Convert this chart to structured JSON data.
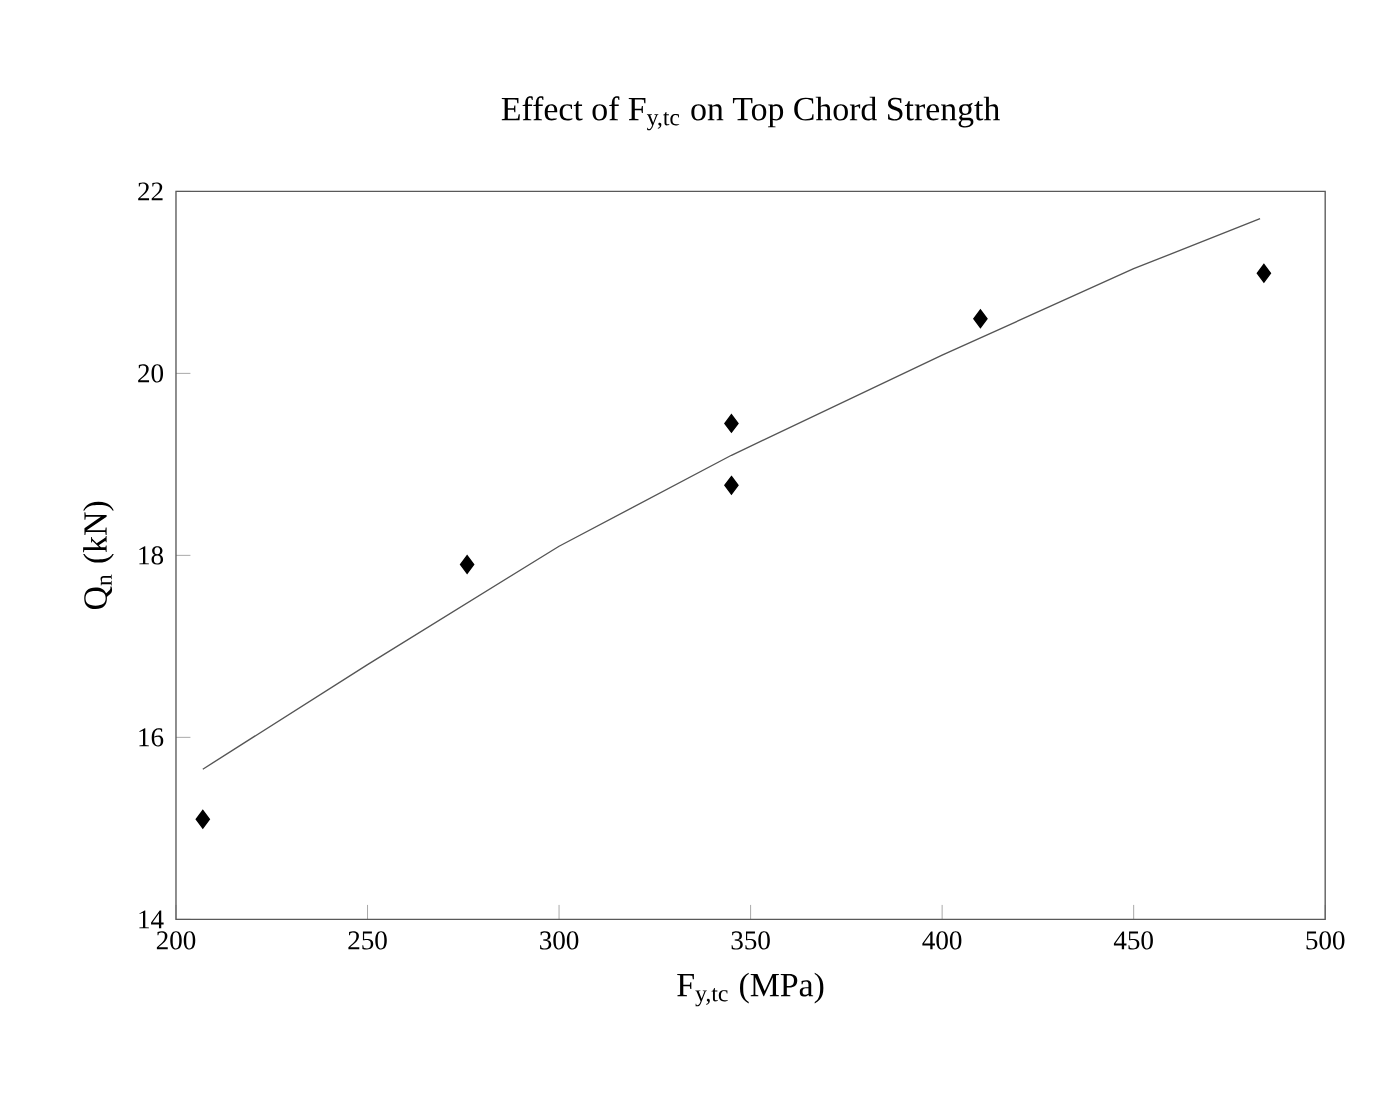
{
  "chart_data": {
    "type": "scatter",
    "title": "Effect of F$_{y,tc}$ on Top Chord Strength",
    "xlabel": "F$_{y,tc}$ (MPa)",
    "ylabel": "Q$_{n}$ (kN)",
    "xlim": [
      200,
      500
    ],
    "xticks": [
      200,
      250,
      300,
      350,
      400,
      450,
      500
    ],
    "ylim": [
      14,
      22
    ],
    "yticks": [
      14,
      16,
      18,
      20,
      22
    ],
    "grid": false,
    "marker": "diamond",
    "series": [
      {
        "color": "#000000",
        "x": [
          207,
          276,
          345,
          345,
          410,
          484
        ],
        "values": [
          15.1,
          17.9,
          19.45,
          18.77,
          20.6,
          21.1
        ]
      },
      {
        "type": "line",
        "color": "#555555",
        "line_style": "solid",
        "marker": "none",
        "x": [
          207,
          250,
          300,
          345,
          400,
          450,
          483
        ],
        "values": [
          15.65,
          16.8,
          18.1,
          19.1,
          20.2,
          21.15,
          21.7
        ]
      }
    ]
  }
}
